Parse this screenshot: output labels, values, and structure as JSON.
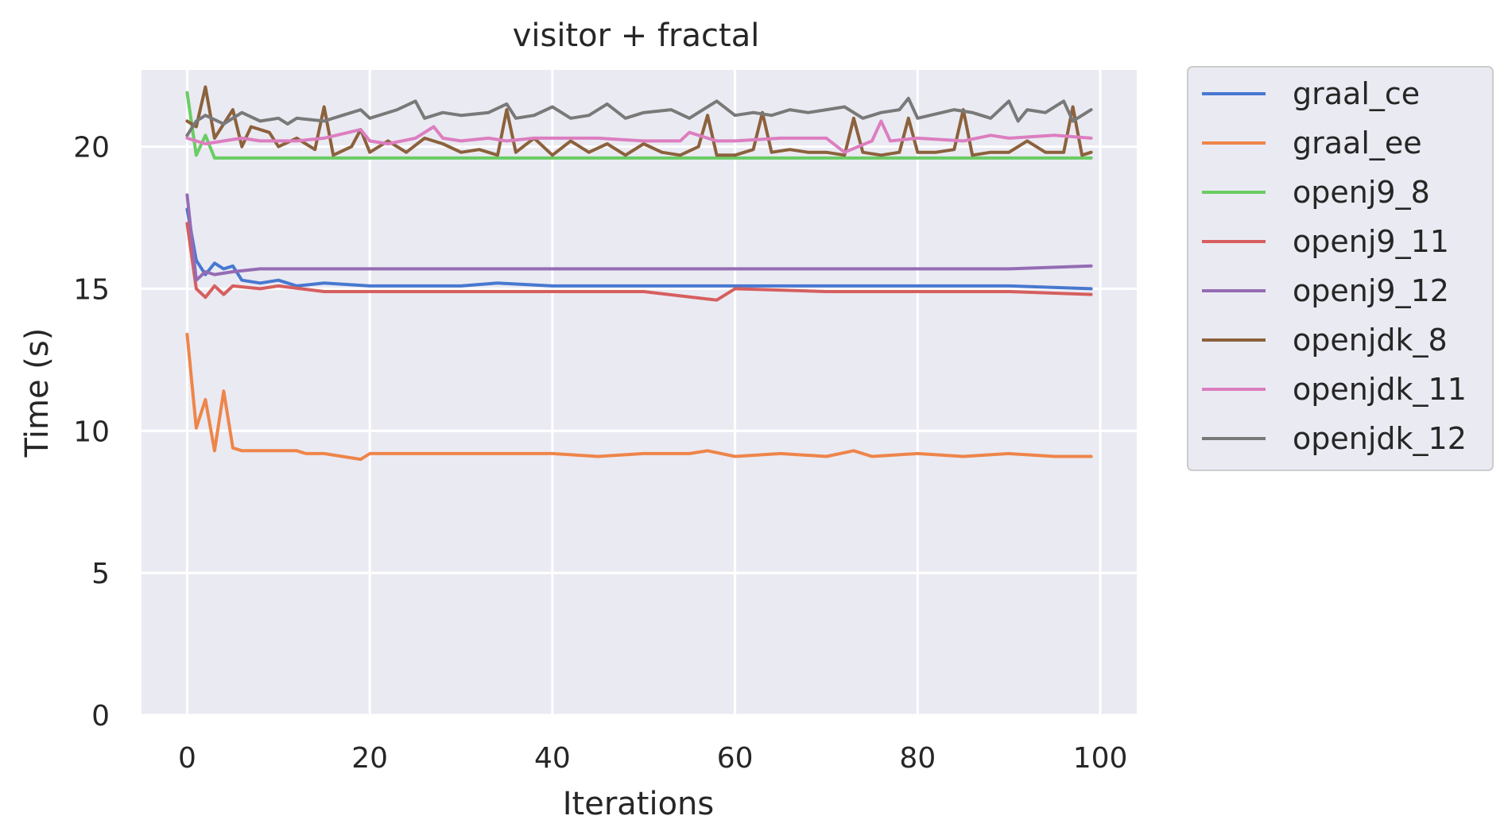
{
  "chart_data": {
    "type": "line",
    "title": "visitor + fractal",
    "xlabel": "Iterations",
    "ylabel": "Time (s)",
    "xlim": [
      -5,
      104
    ],
    "ylim": [
      0,
      22.7
    ],
    "xticks": [
      "0",
      "20",
      "40",
      "60",
      "80",
      "100"
    ],
    "yticks": [
      "0",
      "5",
      "10",
      "15",
      "20"
    ],
    "grid": true,
    "legend_position": "outside-right",
    "background": "#eaeaf2",
    "series": [
      {
        "name": "graal_ce",
        "color": "#4878d0",
        "x": [
          0,
          1,
          2,
          3,
          4,
          5,
          6,
          8,
          10,
          12,
          15,
          20,
          30,
          34,
          40,
          50,
          57,
          62,
          70,
          80,
          90,
          99
        ],
        "y": [
          17.8,
          16.0,
          15.5,
          15.9,
          15.7,
          15.8,
          15.3,
          15.2,
          15.3,
          15.1,
          15.2,
          15.1,
          15.1,
          15.2,
          15.1,
          15.1,
          15.1,
          15.1,
          15.1,
          15.1,
          15.1,
          15.0
        ]
      },
      {
        "name": "graal_ee",
        "color": "#ee854a",
        "x": [
          0,
          1,
          2,
          3,
          4,
          5,
          6,
          8,
          10,
          12,
          13,
          15,
          19,
          20,
          25,
          30,
          35,
          40,
          45,
          50,
          55,
          57,
          60,
          65,
          70,
          73,
          75,
          80,
          85,
          90,
          95,
          99
        ],
        "y": [
          13.4,
          10.1,
          11.1,
          9.3,
          11.4,
          9.4,
          9.3,
          9.3,
          9.3,
          9.3,
          9.2,
          9.2,
          9.0,
          9.2,
          9.2,
          9.2,
          9.2,
          9.2,
          9.1,
          9.2,
          9.2,
          9.3,
          9.1,
          9.2,
          9.1,
          9.3,
          9.1,
          9.2,
          9.1,
          9.2,
          9.1,
          9.1
        ]
      },
      {
        "name": "openj9_8",
        "color": "#6acc64",
        "x": [
          0,
          1,
          2,
          3,
          5,
          10,
          20,
          30,
          40,
          50,
          60,
          70,
          80,
          90,
          99
        ],
        "y": [
          21.9,
          19.7,
          20.4,
          19.6,
          19.6,
          19.6,
          19.6,
          19.6,
          19.6,
          19.6,
          19.6,
          19.6,
          19.6,
          19.6,
          19.6
        ]
      },
      {
        "name": "openj9_11",
        "color": "#d65f5f",
        "x": [
          0,
          1,
          2,
          3,
          4,
          5,
          8,
          10,
          15,
          20,
          30,
          40,
          50,
          58,
          60,
          70,
          80,
          90,
          99
        ],
        "y": [
          17.3,
          15.0,
          14.7,
          15.1,
          14.8,
          15.1,
          15.0,
          15.1,
          14.9,
          14.9,
          14.9,
          14.9,
          14.9,
          14.6,
          15.0,
          14.9,
          14.9,
          14.9,
          14.8
        ]
      },
      {
        "name": "openj9_12",
        "color": "#956cb4",
        "x": [
          0,
          1,
          2,
          3,
          5,
          8,
          10,
          15,
          20,
          30,
          40,
          50,
          60,
          70,
          80,
          90,
          99
        ],
        "y": [
          18.3,
          15.3,
          15.6,
          15.5,
          15.6,
          15.7,
          15.7,
          15.7,
          15.7,
          15.7,
          15.7,
          15.7,
          15.7,
          15.7,
          15.7,
          15.7,
          15.8
        ]
      },
      {
        "name": "openjdk_8",
        "color": "#8c613c",
        "x": [
          0,
          1,
          2,
          3,
          5,
          6,
          7,
          9,
          10,
          12,
          14,
          15,
          16,
          18,
          19,
          20,
          22,
          24,
          26,
          28,
          30,
          32,
          34,
          35,
          36,
          38,
          40,
          42,
          44,
          46,
          48,
          50,
          52,
          54,
          56,
          57,
          58,
          60,
          62,
          63,
          64,
          66,
          68,
          70,
          72,
          73,
          74,
          76,
          78,
          79,
          80,
          82,
          84,
          85,
          86,
          88,
          90,
          92,
          94,
          96,
          97,
          98,
          99
        ],
        "y": [
          20.9,
          20.7,
          22.1,
          20.3,
          21.3,
          20.0,
          20.7,
          20.5,
          20.0,
          20.3,
          19.9,
          21.4,
          19.7,
          20.0,
          20.6,
          19.8,
          20.2,
          19.8,
          20.3,
          20.1,
          19.8,
          19.9,
          19.7,
          21.3,
          19.8,
          20.3,
          19.7,
          20.2,
          19.8,
          20.1,
          19.7,
          20.1,
          19.8,
          19.7,
          20.0,
          21.1,
          19.7,
          19.7,
          19.9,
          21.2,
          19.8,
          19.9,
          19.8,
          19.8,
          19.7,
          21.0,
          19.8,
          19.7,
          19.8,
          21.0,
          19.8,
          19.8,
          19.9,
          21.3,
          19.7,
          19.8,
          19.8,
          20.2,
          19.8,
          19.8,
          21.4,
          19.7,
          19.8
        ]
      },
      {
        "name": "openjdk_11",
        "color": "#dc7ec0",
        "x": [
          0,
          2,
          4,
          6,
          8,
          10,
          12,
          15,
          19,
          20,
          22,
          25,
          27,
          28,
          30,
          33,
          35,
          38,
          40,
          45,
          50,
          54,
          55,
          58,
          60,
          65,
          70,
          72,
          75,
          76,
          77,
          80,
          85,
          88,
          90,
          95,
          99
        ],
        "y": [
          20.3,
          20.1,
          20.2,
          20.3,
          20.2,
          20.2,
          20.2,
          20.3,
          20.6,
          20.2,
          20.1,
          20.3,
          20.7,
          20.3,
          20.2,
          20.3,
          20.2,
          20.3,
          20.3,
          20.3,
          20.2,
          20.2,
          20.5,
          20.2,
          20.2,
          20.3,
          20.3,
          19.8,
          20.2,
          20.9,
          20.2,
          20.3,
          20.2,
          20.4,
          20.3,
          20.4,
          20.3
        ]
      },
      {
        "name": "openjdk_12",
        "color": "#797979",
        "x": [
          0,
          1,
          2,
          4,
          6,
          8,
          10,
          11,
          12,
          15,
          17,
          19,
          20,
          23,
          25,
          26,
          28,
          30,
          33,
          35,
          36,
          38,
          40,
          42,
          44,
          46,
          48,
          50,
          53,
          55,
          57,
          58,
          60,
          62,
          64,
          66,
          68,
          70,
          72,
          74,
          76,
          78,
          79,
          80,
          84,
          86,
          88,
          90,
          91,
          92,
          94,
          96,
          97,
          99
        ],
        "y": [
          20.4,
          20.9,
          21.1,
          20.8,
          21.2,
          20.9,
          21.0,
          20.8,
          21.0,
          20.9,
          21.1,
          21.3,
          21.0,
          21.3,
          21.6,
          21.0,
          21.2,
          21.1,
          21.2,
          21.5,
          21.0,
          21.1,
          21.4,
          21.0,
          21.1,
          21.5,
          21.0,
          21.2,
          21.3,
          21.0,
          21.4,
          21.6,
          21.1,
          21.2,
          21.1,
          21.3,
          21.2,
          21.3,
          21.4,
          21.0,
          21.2,
          21.3,
          21.7,
          21.0,
          21.3,
          21.2,
          21.0,
          21.6,
          20.9,
          21.3,
          21.2,
          21.6,
          20.9,
          21.3
        ]
      }
    ]
  }
}
